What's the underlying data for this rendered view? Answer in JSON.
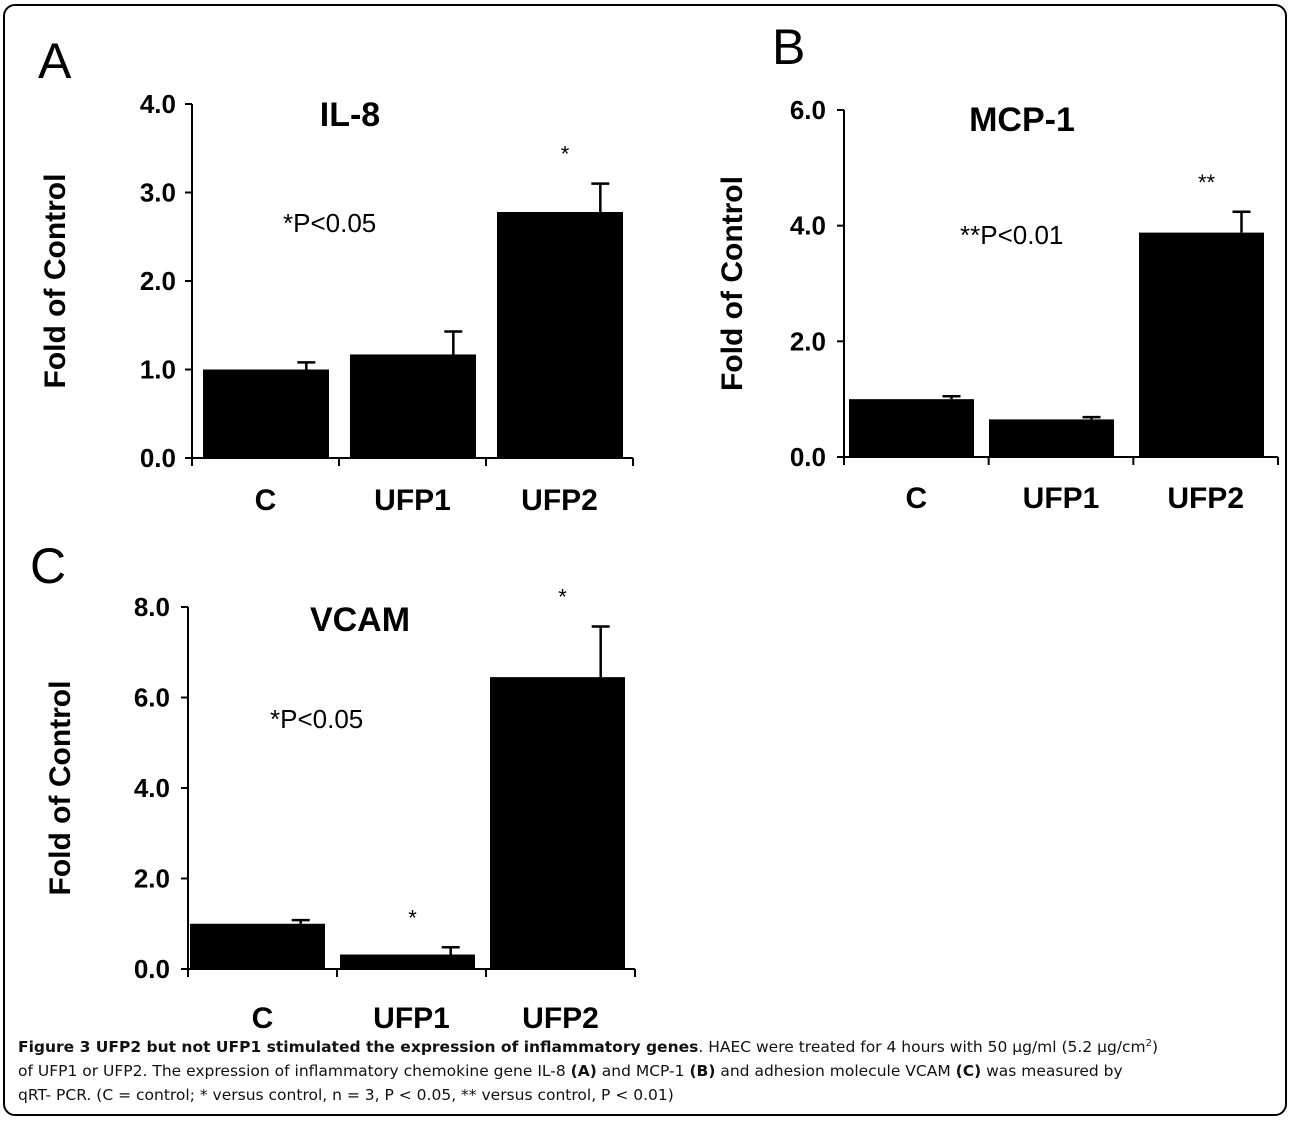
{
  "chart_data": [
    {
      "panel": "A",
      "type": "bar",
      "title": "IL-8",
      "ylabel": "Fold of Control",
      "categories": [
        "C",
        "UFP1",
        "UFP2"
      ],
      "values": [
        1.0,
        1.17,
        2.78
      ],
      "errors": [
        0.08,
        0.26,
        0.32
      ],
      "significance": [
        "",
        "",
        "*"
      ],
      "annotation": "*P<0.05",
      "ylim": [
        0,
        4
      ],
      "yticks": [
        "0.0",
        "1.0",
        "2.0",
        "3.0",
        "4.0"
      ],
      "bar_color": "#000000"
    },
    {
      "panel": "B",
      "type": "bar",
      "title": "MCP-1",
      "ylabel": "Fold of Control",
      "categories": [
        "C",
        "UFP1",
        "UFP2"
      ],
      "values": [
        1.0,
        0.65,
        3.88
      ],
      "errors": [
        0.05,
        0.04,
        0.36
      ],
      "significance": [
        "",
        "",
        "**"
      ],
      "annotation": "**P<0.01",
      "ylim": [
        0,
        6
      ],
      "yticks": [
        "0.0",
        "2.0",
        "4.0",
        "6.0"
      ],
      "bar_color": "#000000"
    },
    {
      "panel": "C",
      "type": "bar",
      "title": "VCAM",
      "ylabel": "Fold of Control",
      "categories": [
        "C",
        "UFP1",
        "UFP2"
      ],
      "values": [
        1.0,
        0.32,
        6.45
      ],
      "errors": [
        0.08,
        0.16,
        1.12
      ],
      "significance": [
        "",
        "*",
        "*"
      ],
      "annotation": "*P<0.05",
      "ylim": [
        0,
        8
      ],
      "yticks": [
        "0.0",
        "2.0",
        "4.0",
        "6.0",
        "8.0"
      ],
      "bar_color": "#000000"
    }
  ],
  "caption": {
    "figure_label": "Figure 3",
    "title": "UFP2 but not UFP1 stimulated the expression of inflammatory genes",
    "line1": ". HAEC were treated for 4 hours with 50 µg/ml (5.2 µg/cm",
    "line1_sup": "2",
    "line1_end": ")",
    "line2_a": "of UFP1 or UFP2. The expression of inflammatory chemokine gene IL-8 ",
    "line2_b": "(A)",
    "line2_c": " and MCP-1 ",
    "line2_d": "(B)",
    "line2_e": " and adhesion molecule VCAM ",
    "line2_f": "(C)",
    "line2_g": " was measured by",
    "line3": "qRT- PCR. (C = control; * versus control, n = 3, P < 0.05, ** versus control, P < 0.01)"
  }
}
